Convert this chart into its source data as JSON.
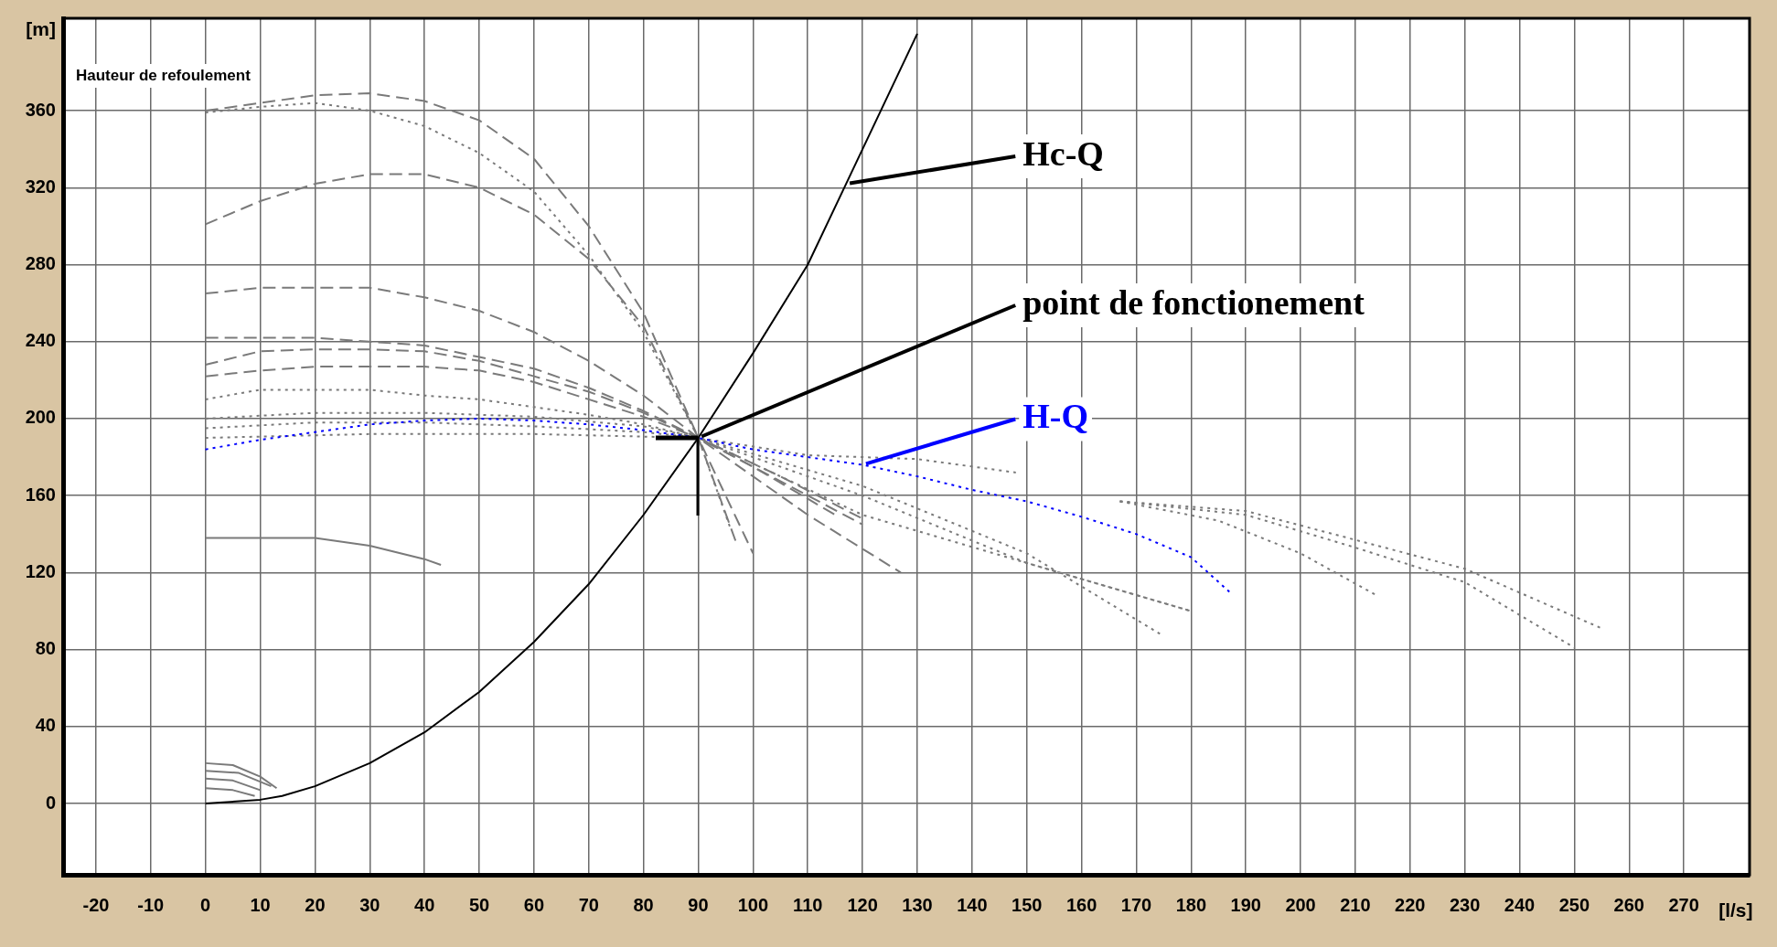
{
  "chart_data": {
    "type": "line",
    "title": "Hauteur de refoulement",
    "xlabel": "[l/s]",
    "ylabel": "[m]",
    "xlim": [
      -26,
      282
    ],
    "ylim": [
      -37,
      408
    ],
    "xticks": [
      -20,
      -10,
      0,
      10,
      20,
      30,
      40,
      50,
      60,
      70,
      80,
      90,
      100,
      110,
      120,
      130,
      140,
      150,
      160,
      170,
      180,
      190,
      200,
      210,
      220,
      230,
      240,
      250,
      260,
      270
    ],
    "yticks": [
      0,
      40,
      80,
      120,
      160,
      200,
      240,
      280,
      320,
      360
    ],
    "grid": true,
    "legend": false,
    "marker": "none",
    "series": [
      {
        "color": "#000000",
        "line_style": "solid",
        "x": [
          0,
          10,
          14,
          20,
          30,
          40,
          50,
          60,
          70,
          80,
          90,
          100,
          110,
          117,
          130
        ],
        "values": [
          0,
          2,
          4,
          9,
          21,
          37,
          58,
          84,
          114,
          150,
          190,
          234,
          280,
          322,
          400
        ]
      },
      {
        "color": "#0000ff",
        "line_style": "dotted",
        "x": [
          0,
          10,
          20,
          30,
          40,
          50,
          60,
          70,
          80,
          90,
          100,
          110,
          120,
          130,
          140,
          150,
          160,
          170,
          180,
          187
        ],
        "values": [
          184,
          189,
          193,
          197,
          199,
          200,
          199,
          197,
          194,
          190,
          184,
          180,
          176,
          170,
          163,
          157,
          149,
          140,
          128,
          110
        ]
      },
      {
        "color": "#7a7a7a",
        "line_style": "dashed",
        "x": [
          0,
          10,
          20,
          30,
          40,
          50,
          60,
          70,
          80,
          90,
          97
        ],
        "values": [
          360,
          364,
          368,
          369,
          365,
          355,
          335,
          300,
          255,
          190,
          135
        ]
      },
      {
        "color": "#7a7a7a",
        "line_style": "dotted",
        "x": [
          0,
          10,
          20,
          30,
          40,
          50,
          60,
          70,
          80,
          90,
          96
        ],
        "values": [
          359,
          362,
          364,
          360,
          352,
          338,
          318,
          285,
          245,
          190,
          142
        ]
      },
      {
        "color": "#7a7a7a",
        "line_style": "dashed",
        "x": [
          0,
          10,
          20,
          30,
          40,
          50,
          60,
          70,
          80,
          90,
          100
        ],
        "values": [
          301,
          313,
          322,
          327,
          327,
          320,
          306,
          283,
          248,
          190,
          130
        ]
      },
      {
        "color": "#7a7a7a",
        "line_style": "dashed",
        "x": [
          0,
          10,
          20,
          30,
          40,
          50,
          60,
          70,
          80,
          90,
          110,
          127
        ],
        "values": [
          265,
          268,
          268,
          268,
          263,
          256,
          245,
          230,
          212,
          190,
          150,
          120
        ]
      },
      {
        "color": "#7a7a7a",
        "line_style": "dashed",
        "x": [
          0,
          20,
          30,
          40,
          50,
          60,
          70,
          80,
          90,
          100,
          115
        ],
        "values": [
          242,
          242,
          240,
          238,
          232,
          226,
          216,
          204,
          190,
          175,
          150
        ]
      },
      {
        "color": "#7a7a7a",
        "line_style": "dashed",
        "x": [
          0,
          10,
          20,
          30,
          40,
          50,
          60,
          70,
          80,
          90,
          110,
          120
        ],
        "values": [
          228,
          235,
          236,
          236,
          235,
          230,
          222,
          214,
          203,
          190,
          160,
          145
        ]
      },
      {
        "color": "#7a7a7a",
        "line_style": "dashed",
        "x": [
          0,
          10,
          20,
          30,
          40,
          50,
          60,
          70,
          80,
          90,
          105,
          120
        ],
        "values": [
          222,
          225,
          227,
          227,
          227,
          225,
          219,
          210,
          201,
          190,
          170,
          148
        ]
      },
      {
        "color": "#7a7a7a",
        "line_style": "dotted",
        "x": [
          0,
          10,
          20,
          30,
          40,
          50,
          60,
          70,
          80,
          90,
          120,
          150,
          180
        ],
        "values": [
          210,
          215,
          215,
          215,
          212,
          210,
          206,
          202,
          197,
          190,
          150,
          125,
          100
        ]
      },
      {
        "color": "#7a7a7a",
        "line_style": "dotted",
        "x": [
          0,
          20,
          40,
          60,
          80,
          90,
          110,
          130,
          148
        ],
        "values": [
          200,
          203,
          203,
          201,
          196,
          190,
          181,
          179,
          172
        ]
      },
      {
        "color": "#7a7a7a",
        "line_style": "dotted",
        "x": [
          0,
          20,
          40,
          60,
          80,
          90,
          120,
          150,
          175
        ],
        "values": [
          195,
          198,
          198,
          196,
          193,
          190,
          165,
          130,
          87
        ]
      },
      {
        "color": "#7a7a7a",
        "line_style": "dotted",
        "x": [
          0,
          30,
          60,
          90,
          120,
          150,
          180
        ],
        "values": [
          190,
          192,
          192,
          190,
          160,
          125,
          100
        ]
      },
      {
        "color": "#7a7a7a",
        "line_style": "solid",
        "x": [
          0,
          10,
          20,
          30,
          40,
          43
        ],
        "values": [
          138,
          138,
          138,
          134,
          127,
          124
        ]
      },
      {
        "color": "#7a7a7a",
        "line_style": "solid",
        "x": [
          0,
          5,
          10,
          13
        ],
        "values": [
          21,
          20,
          14,
          8
        ]
      },
      {
        "color": "#7a7a7a",
        "line_style": "solid",
        "x": [
          0,
          6,
          12
        ],
        "values": [
          17,
          16,
          9
        ]
      },
      {
        "color": "#7a7a7a",
        "line_style": "solid",
        "x": [
          0,
          5,
          10
        ],
        "values": [
          13,
          12,
          7
        ]
      },
      {
        "color": "#7a7a7a",
        "line_style": "solid",
        "x": [
          0,
          5,
          9
        ],
        "values": [
          8,
          7,
          4
        ]
      },
      {
        "color": "#7a7a7a",
        "line_style": "dotted",
        "x": [
          167,
          190,
          210,
          230,
          255
        ],
        "values": [
          157,
          152,
          137,
          122,
          91
        ]
      },
      {
        "color": "#7a7a7a",
        "line_style": "dotted",
        "x": [
          167,
          190,
          210,
          230,
          250
        ],
        "values": [
          157,
          150,
          133,
          115,
          81
        ]
      },
      {
        "color": "#7a7a7a",
        "line_style": "dotted",
        "x": [
          167,
          185,
          200,
          214
        ],
        "values": [
          157,
          147,
          130,
          108
        ]
      }
    ],
    "annotations": [
      {
        "text": "Hc-Q",
        "x": 117,
        "y": 322
      },
      {
        "text": "point de fonctionement",
        "x": 90,
        "y": 190
      },
      {
        "text": "H-Q",
        "x": 120,
        "y": 176
      }
    ]
  }
}
